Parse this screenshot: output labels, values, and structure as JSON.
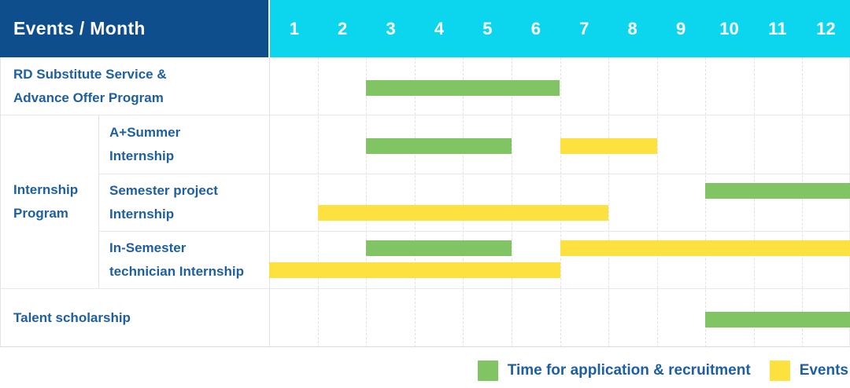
{
  "chart_data": {
    "type": "gantt",
    "corner_label": "Events / Month",
    "month_labels": [
      "1",
      "2",
      "3",
      "4",
      "5",
      "6",
      "7",
      "8",
      "9",
      "10",
      "11",
      "12"
    ],
    "x_range": [
      1,
      12
    ],
    "group_label": "Internship Program",
    "rows": [
      {
        "label": "RD Substitute Service &\nAdvance Offer Program",
        "group": null,
        "bars": [
          {
            "series": "Time for application & recruitment",
            "start_month": 3,
            "end_month": 6,
            "line": "single"
          }
        ]
      },
      {
        "label": "A+Summer\nInternship",
        "group": "Internship Program",
        "bars": [
          {
            "series": "Time for application & recruitment",
            "start_month": 3,
            "end_month": 5,
            "line": "single"
          },
          {
            "series": "Events",
            "start_month": 7,
            "end_month": 8,
            "line": "single"
          }
        ]
      },
      {
        "label": "Semester project\nInternship",
        "group": "Internship Program",
        "bars": [
          {
            "series": "Time for application & recruitment",
            "start_month": 10,
            "end_month": 12,
            "line": "top"
          },
          {
            "series": "Events",
            "start_month": 2,
            "end_month": 7,
            "line": "bottom"
          }
        ]
      },
      {
        "label": "In-Semester\ntechnician Internship",
        "group": "Internship Program",
        "bars": [
          {
            "series": "Time for application & recruitment",
            "start_month": 3,
            "end_month": 5,
            "line": "top"
          },
          {
            "series": "Events",
            "start_month": 7,
            "end_month": 12,
            "line": "top"
          },
          {
            "series": "Events",
            "start_month": 1,
            "end_month": 6,
            "line": "bottom"
          }
        ]
      },
      {
        "label": "Talent scholarship",
        "group": null,
        "bars": [
          {
            "series": "Time for application & recruitment",
            "start_month": 10,
            "end_month": 12,
            "line": "single"
          }
        ]
      }
    ],
    "legend": [
      {
        "label": "Time for application & recruitment",
        "color": "#80C464"
      },
      {
        "label": "Events",
        "color": "#FDE23F"
      }
    ],
    "colors": {
      "header_bg": "#0F4E8C",
      "month_header_bg": "#0CD6EE",
      "application_bar": "#80C464",
      "events_bar": "#FDE23F",
      "label_text": "#1E5FA3",
      "header_text": "#FFFFFF"
    }
  }
}
